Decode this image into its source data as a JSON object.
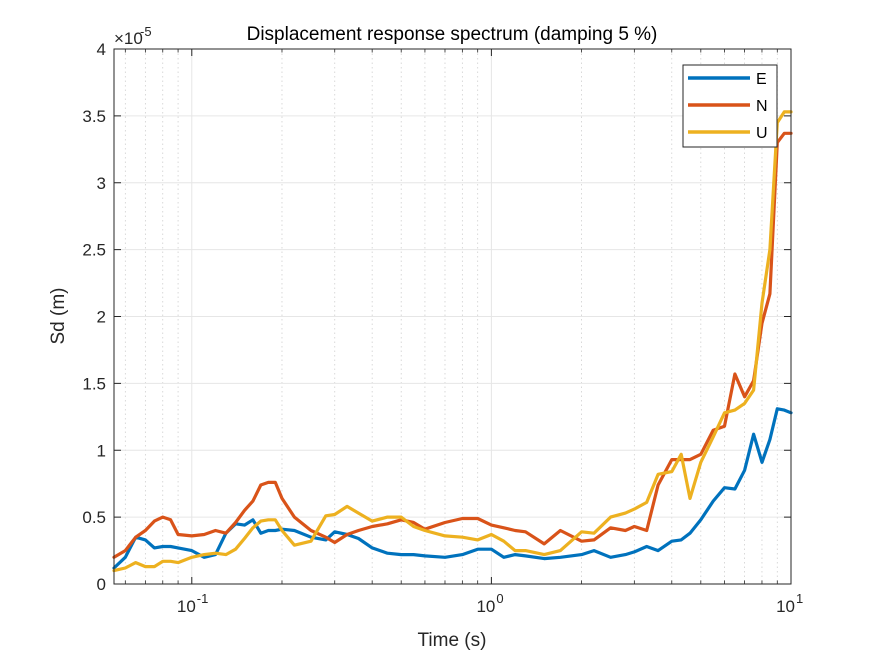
{
  "chart_data": {
    "type": "line",
    "title": "Displacement response spectrum (damping 5 %)",
    "xlabel": "Time (s)",
    "ylabel": "Sd (m)",
    "x_scale": "log",
    "xlim": [
      0.055,
      10
    ],
    "ylim": [
      0,
      4
    ],
    "y_exponent_label": "×10^-5",
    "y_exponent_base": "×10",
    "y_exponent_power": "-5",
    "x_ticks": [
      0.1,
      1,
      10
    ],
    "x_tick_base": "10",
    "x_tick_powers": [
      "-1",
      "0",
      "1"
    ],
    "y_ticks": [
      0,
      0.5,
      1,
      1.5,
      2,
      2.5,
      3,
      3.5,
      4
    ],
    "y_tick_labels": [
      "0",
      "0.5",
      "1",
      "1.5",
      "2",
      "2.5",
      "3",
      "3.5",
      "4"
    ],
    "grid": true,
    "legend_position": "top-right",
    "colors": {
      "E": "#0072BD",
      "N": "#D95319",
      "U": "#EDB120",
      "grid": "#e6e6e6",
      "axis": "#262626"
    },
    "x": [
      0.055,
      0.06,
      0.065,
      0.07,
      0.075,
      0.08,
      0.085,
      0.09,
      0.1,
      0.11,
      0.12,
      0.13,
      0.14,
      0.15,
      0.16,
      0.17,
      0.18,
      0.19,
      0.2,
      0.22,
      0.25,
      0.28,
      0.3,
      0.33,
      0.36,
      0.4,
      0.45,
      0.5,
      0.55,
      0.6,
      0.7,
      0.8,
      0.9,
      1.0,
      1.1,
      1.2,
      1.3,
      1.5,
      1.7,
      2.0,
      2.2,
      2.5,
      2.8,
      3.0,
      3.3,
      3.6,
      4.0,
      4.3,
      4.6,
      5.0,
      5.5,
      6.0,
      6.5,
      7.0,
      7.5,
      8.0,
      8.5,
      9.0,
      9.5,
      10.0
    ],
    "series": [
      {
        "name": "E",
        "values": [
          0.12,
          0.2,
          0.35,
          0.33,
          0.27,
          0.28,
          0.28,
          0.27,
          0.25,
          0.2,
          0.22,
          0.38,
          0.45,
          0.44,
          0.48,
          0.38,
          0.4,
          0.4,
          0.41,
          0.4,
          0.35,
          0.33,
          0.39,
          0.37,
          0.34,
          0.27,
          0.23,
          0.22,
          0.22,
          0.21,
          0.2,
          0.22,
          0.26,
          0.26,
          0.2,
          0.22,
          0.21,
          0.19,
          0.2,
          0.22,
          0.25,
          0.2,
          0.22,
          0.24,
          0.28,
          0.25,
          0.32,
          0.33,
          0.38,
          0.48,
          0.62,
          0.72,
          0.71,
          0.85,
          1.12,
          0.91,
          1.08,
          1.31,
          1.3,
          1.28
        ]
      },
      {
        "name": "N",
        "values": [
          0.2,
          0.25,
          0.35,
          0.4,
          0.47,
          0.5,
          0.48,
          0.37,
          0.36,
          0.37,
          0.4,
          0.38,
          0.46,
          0.55,
          0.62,
          0.74,
          0.76,
          0.76,
          0.64,
          0.5,
          0.4,
          0.35,
          0.31,
          0.37,
          0.4,
          0.43,
          0.45,
          0.48,
          0.46,
          0.41,
          0.46,
          0.49,
          0.49,
          0.44,
          0.42,
          0.4,
          0.39,
          0.3,
          0.4,
          0.32,
          0.33,
          0.42,
          0.4,
          0.43,
          0.4,
          0.74,
          0.93,
          0.93,
          0.93,
          0.97,
          1.15,
          1.18,
          1.57,
          1.4,
          1.52,
          1.95,
          2.17,
          3.3,
          3.37,
          3.37
        ]
      },
      {
        "name": "U",
        "values": [
          0.1,
          0.12,
          0.16,
          0.13,
          0.13,
          0.17,
          0.17,
          0.16,
          0.2,
          0.22,
          0.23,
          0.22,
          0.26,
          0.34,
          0.42,
          0.47,
          0.48,
          0.48,
          0.4,
          0.29,
          0.32,
          0.51,
          0.52,
          0.58,
          0.53,
          0.47,
          0.5,
          0.5,
          0.43,
          0.4,
          0.36,
          0.35,
          0.33,
          0.37,
          0.32,
          0.25,
          0.25,
          0.22,
          0.25,
          0.39,
          0.38,
          0.5,
          0.53,
          0.56,
          0.61,
          0.82,
          0.84,
          0.97,
          0.64,
          0.91,
          1.1,
          1.28,
          1.3,
          1.35,
          1.45,
          2.1,
          2.5,
          3.45,
          3.53,
          3.53
        ]
      }
    ]
  }
}
